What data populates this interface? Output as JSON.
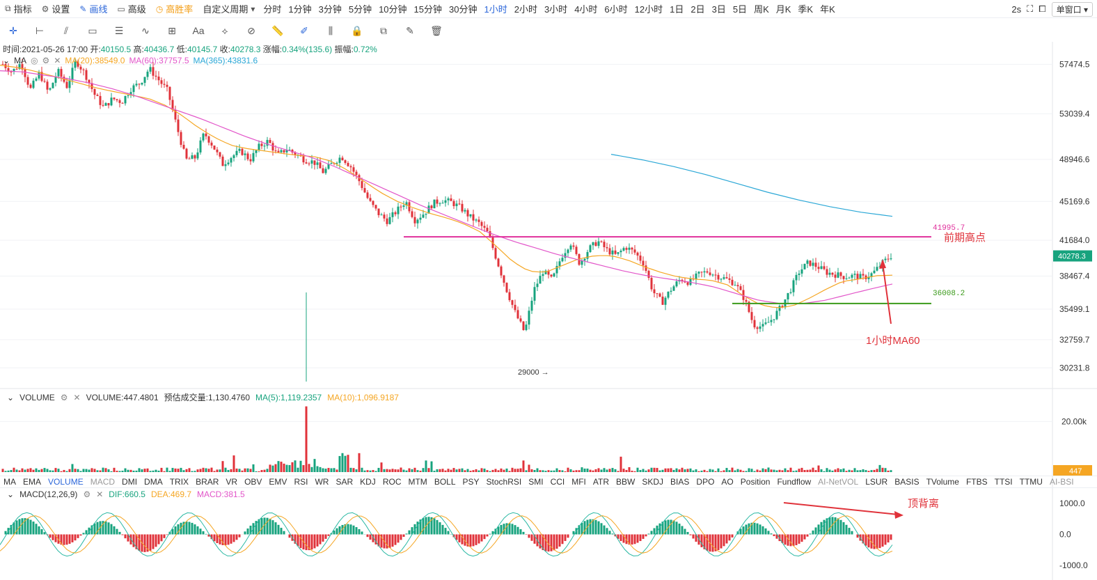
{
  "toolbar": {
    "indicator": "指标",
    "settings": "设置",
    "draw": "画线",
    "advanced": "高级",
    "win_rate": "高胜率",
    "custom_period": "自定义周期",
    "periods": [
      "分时",
      "1分钟",
      "3分钟",
      "5分钟",
      "10分钟",
      "15分钟",
      "30分钟",
      "1小时",
      "2小时",
      "3小时",
      "4小时",
      "6小时",
      "12小时",
      "1日",
      "2日",
      "3日",
      "5日",
      "周K",
      "月K",
      "季K",
      "年K"
    ],
    "active_period": "1小时",
    "refresh": "2s",
    "window_mode": "单窗口"
  },
  "info": {
    "time": "时间:2021-05-26 17:00",
    "open_label": "开:",
    "open": "40150.5",
    "high_label": "高:",
    "high": "40436.7",
    "low_label": "低:",
    "low": "40145.7",
    "close_label": "收:",
    "close": "40278.3",
    "change_label": "涨幅:",
    "change": "0.34%(135.6)",
    "amp_label": "振幅:",
    "amp": "0.72%"
  },
  "ma_legend": {
    "name": "MA",
    "ma20": "MA(20):38549.0",
    "ma60": "MA(60):37757.5",
    "ma365": "MA(365):43831.6"
  },
  "volume_legend": {
    "name": "VOLUME",
    "value": "VOLUME:447.4801",
    "est": "预估成交量:1,130.4760",
    "ma5": "MA(5):1,119.2357",
    "ma10": "MA(10):1,096.9187"
  },
  "macd_legend": {
    "name": "MACD(12,26,9)",
    "dif": "DIF:660.5",
    "dea": "DEA:469.7",
    "macd": "MACD:381.5"
  },
  "indicators": [
    "MA",
    "EMA",
    "VOLUME",
    "MACD",
    "DMI",
    "DMA",
    "TRIX",
    "BRAR",
    "VR",
    "OBV",
    "EMV",
    "RSI",
    "WR",
    "SAR",
    "KDJ",
    "ROC",
    "MTM",
    "BOLL",
    "PSY",
    "StochRSI",
    "SMI",
    "CCI",
    "MFI",
    "ATR",
    "BBW",
    "SKDJ",
    "BIAS",
    "DPO",
    "AO",
    "Position",
    "Fundflow",
    "AI-NetVOL",
    "LSUR",
    "BASIS",
    "TVolume",
    "FTBS",
    "TTSI",
    "TTMU",
    "AI-BSI"
  ],
  "active_indicator": "VOLUME",
  "muted_indicators": [
    "MACD",
    "AI-NetVOL",
    "AI-BSI"
  ],
  "colors": {
    "up": "#17a37e",
    "down": "#e0323a",
    "ma20": "#f5a623",
    "ma60": "#e255c9",
    "ma365": "#2aa7d6",
    "accent": "#2b66d9"
  },
  "chart_data": [
    {
      "type": "candlestick",
      "ylim": [
        28500,
        59500
      ],
      "yticks": [
        57474.5,
        53039.4,
        48946.6,
        45169.6,
        41684.0,
        38467.4,
        35499.1,
        32759.7,
        30231.8
      ],
      "current_price": "40278.3",
      "close_path": [
        57500,
        56800,
        57600,
        55200,
        56700,
        54900,
        56900,
        55500,
        57800,
        56600,
        54800,
        53600,
        54400,
        54100,
        55300,
        55800,
        57100,
        56100,
        55100,
        51900,
        48900,
        49100,
        51300,
        50100,
        48500,
        49200,
        49700,
        48900,
        50100,
        50600,
        49300,
        49900,
        49400,
        48900,
        48700,
        47800,
        48600,
        49200,
        48300,
        46900,
        45200,
        44100,
        43400,
        44300,
        45200,
        43500,
        44100,
        45000,
        45300,
        45100,
        44600,
        43800,
        43200,
        42300,
        39800,
        37300,
        35100,
        33400,
        37200,
        38900,
        38100,
        40200,
        41500,
        39600,
        40900,
        41600,
        40800,
        40300,
        41100,
        40600,
        39600,
        37100,
        36100,
        37300,
        38200,
        37900,
        38600,
        38900,
        38500,
        38200,
        37800,
        36400,
        34100,
        33900,
        34600,
        35700,
        37200,
        38900,
        39700,
        39300,
        38800,
        38600,
        38400,
        38500,
        38300,
        38700,
        39600,
        40278.3
      ],
      "ma20_path": [
        57400,
        57200,
        56900,
        56500,
        56100,
        55700,
        55300,
        55000,
        54700,
        54400,
        53800,
        52900,
        51800,
        50900,
        50200,
        49900,
        49700,
        49500,
        49300,
        49200,
        48800,
        48000,
        47000,
        46000,
        45200,
        44600,
        44100,
        43700,
        43200,
        42500,
        41200,
        39800,
        38900,
        38800,
        39400,
        40000,
        40300,
        40300,
        39900,
        39300,
        38800,
        38400,
        38200,
        38100,
        37700,
        36700,
        35900,
        35600,
        35800,
        36500,
        37300,
        38000,
        38200,
        38500,
        38549
      ],
      "ma60_path": [
        56900,
        56800,
        56500,
        56200,
        55800,
        55300,
        54700,
        54000,
        53300,
        52600,
        51800,
        51000,
        50300,
        49700,
        49100,
        48300,
        47400,
        46500,
        45600,
        44700,
        43900,
        43100,
        42300,
        41600,
        41000,
        40400,
        39900,
        39400,
        38900,
        38500,
        38200,
        37900,
        37500,
        36900,
        36300,
        36000,
        36000,
        36300,
        36800,
        37300,
        37757.5
      ],
      "ma365_segment": [
        49400,
        48900,
        48300,
        47600,
        46800,
        46000,
        45300,
        44700,
        44200,
        43831.6
      ],
      "lines": [
        {
          "label": "41995.7",
          "value": 41995.7,
          "note": "前期高点",
          "color": "#e0309c"
        },
        {
          "label": "36008.2",
          "value": 36008.2,
          "note": "1小时MA60",
          "color": "#3a9a1a"
        }
      ],
      "low_marker": "29000 →"
    },
    {
      "type": "bar",
      "title": "VOLUME",
      "ylim": [
        0,
        27000
      ],
      "yticks": [
        "20.00k"
      ],
      "current": "447"
    },
    {
      "type": "bar",
      "title": "MACD(12,26,9)",
      "ylim": [
        -1400,
        1400
      ],
      "yticks": [
        "1000.0",
        "0.0",
        "-1000.0"
      ],
      "note": "顶背离"
    }
  ]
}
